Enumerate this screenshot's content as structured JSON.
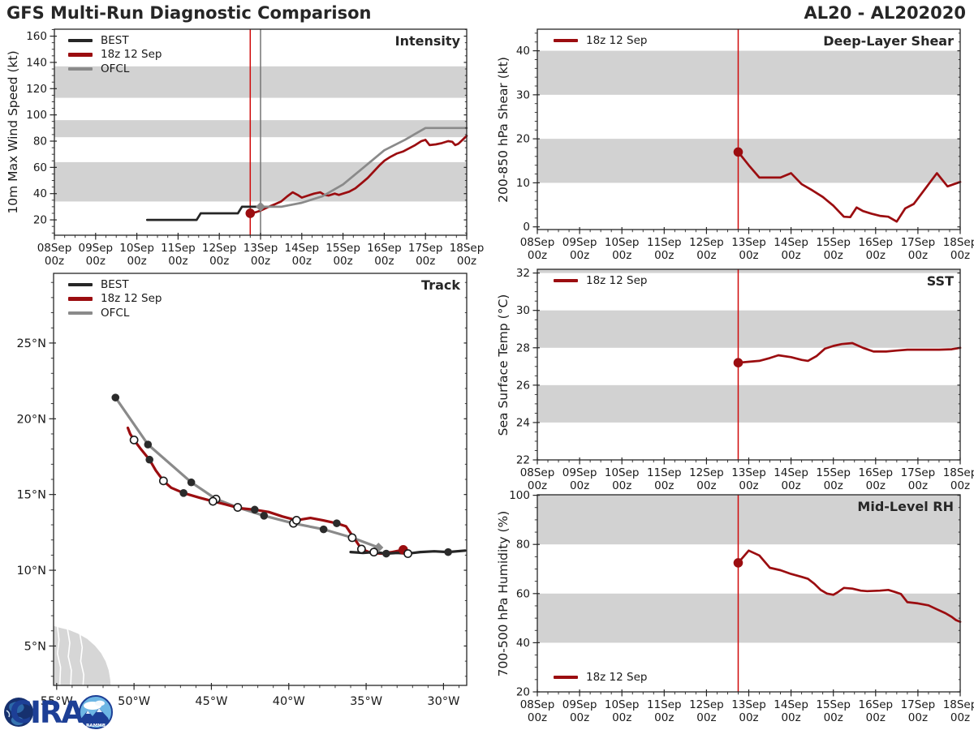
{
  "header": {
    "title_left": "GFS Multi-Run Diagnostic Comparison",
    "title_right": "AL20 - AL202020"
  },
  "colors": {
    "best": "#262626",
    "model": "#9b0d10",
    "ofcl": "#8a8a8a",
    "vline_red": "#cf0a0a",
    "vline_gray": "#757575",
    "band": "#d2d2d2",
    "land": "#d6d6d6",
    "spine": "#262626",
    "tick_text": "#1a1a1a"
  },
  "legend": {
    "best": "BEST",
    "model": "18z 12 Sep",
    "ofcl": "OFCL"
  },
  "logo": {
    "cira": "CIRA",
    "rammb": "RAMMB"
  },
  "time_axis": {
    "tick_line1": [
      "08Sep",
      "09Sep",
      "10Sep",
      "11Sep",
      "12Sep",
      "13Sep",
      "14Sep",
      "15Sep",
      "16Sep",
      "17Sep",
      "18Sep"
    ],
    "tick_line2": "00z",
    "xlim_days": [
      0,
      10
    ],
    "minor_step_days": 0.25
  },
  "chart_data": [
    {
      "id": "intensity",
      "type": "line",
      "title": "Intensity",
      "ylabel": "10m Max Wind Speed (kt)",
      "ylim": [
        8.3,
        165.3
      ],
      "yticks": [
        20,
        40,
        60,
        80,
        100,
        120,
        140,
        160
      ],
      "y_minor_step": 5,
      "bands": [
        [
          34,
          64
        ],
        [
          83,
          96
        ],
        [
          113,
          137
        ]
      ],
      "vlines": [
        {
          "t": 4.75,
          "color": "vline_red"
        },
        {
          "t": 5.0,
          "color": "vline_gray"
        }
      ],
      "show_xlabels": true,
      "series": [
        {
          "name": "BEST",
          "color": "best",
          "start_marker": null,
          "points": [
            [
              2.25,
              20
            ],
            [
              3.45,
              20
            ],
            [
              3.55,
              25
            ],
            [
              4.45,
              25
            ],
            [
              4.55,
              30
            ],
            [
              5.0,
              30
            ]
          ]
        },
        {
          "name": "18z 12 Sep",
          "color": "model",
          "start_marker": "r",
          "points": [
            [
              4.75,
              25
            ],
            [
              4.9,
              26
            ],
            [
              5.0,
              27
            ],
            [
              5.2,
              30
            ],
            [
              5.35,
              32
            ],
            [
              5.5,
              34
            ],
            [
              5.65,
              38
            ],
            [
              5.78,
              41
            ],
            [
              5.9,
              39
            ],
            [
              6.0,
              37
            ],
            [
              6.15,
              38.5
            ],
            [
              6.3,
              40
            ],
            [
              6.45,
              41
            ],
            [
              6.55,
              39
            ],
            [
              6.65,
              38.5
            ],
            [
              6.8,
              40
            ],
            [
              6.9,
              39
            ],
            [
              7.0,
              40
            ],
            [
              7.15,
              41.5
            ],
            [
              7.3,
              44
            ],
            [
              7.45,
              48
            ],
            [
              7.6,
              52
            ],
            [
              7.75,
              57
            ],
            [
              7.9,
              62
            ],
            [
              8.0,
              65
            ],
            [
              8.15,
              68
            ],
            [
              8.3,
              70.5
            ],
            [
              8.45,
              72
            ],
            [
              8.6,
              74.5
            ],
            [
              8.75,
              77
            ],
            [
              8.9,
              80
            ],
            [
              9.0,
              81
            ],
            [
              9.1,
              77
            ],
            [
              9.25,
              77.5
            ],
            [
              9.4,
              78.5
            ],
            [
              9.55,
              80
            ],
            [
              9.65,
              79.5
            ],
            [
              9.72,
              77
            ],
            [
              9.8,
              78
            ],
            [
              9.9,
              81
            ],
            [
              10.0,
              84
            ]
          ]
        },
        {
          "name": "OFCL",
          "color": "ofcl",
          "start_marker": "d",
          "points": [
            [
              5.0,
              30
            ],
            [
              5.5,
              30
            ],
            [
              6.0,
              33
            ],
            [
              6.5,
              38
            ],
            [
              7.0,
              47
            ],
            [
              7.5,
              60
            ],
            [
              8.0,
              73
            ],
            [
              8.5,
              81
            ],
            [
              8.75,
              85.5
            ],
            [
              9.0,
              90
            ],
            [
              10.0,
              90
            ]
          ]
        }
      ]
    },
    {
      "id": "track",
      "type": "track-map",
      "title": "Track",
      "lon_ticks": [
        55,
        50,
        45,
        40,
        35,
        30
      ],
      "lon_tick_labels": [
        "55°W",
        "50°W",
        "45°W",
        "40°W",
        "35°W",
        "30°W"
      ],
      "lat_ticks": [
        5,
        10,
        15,
        20,
        25
      ],
      "lat_tick_labels": [
        "5°N",
        "10°N",
        "15°N",
        "20°N",
        "25°N"
      ],
      "lonlim": [
        55.2,
        28.5
      ],
      "latlim": [
        2.4,
        29.6
      ],
      "series": [
        {
          "name": "OFCL",
          "color": "ofcl",
          "points": [
            [
              34.2,
              11.5,
              "d"
            ],
            [
              35.9,
              12.15,
              "o"
            ],
            [
              37.75,
              12.7,
              "f"
            ],
            [
              39.7,
              13.1,
              "o"
            ],
            [
              41.6,
              13.6,
              "f"
            ],
            [
              43.3,
              14.15,
              "o"
            ],
            [
              44.7,
              14.7,
              "o"
            ],
            [
              46.3,
              15.8,
              "f"
            ],
            [
              49.1,
              18.3,
              "f"
            ],
            [
              51.2,
              21.4,
              "f"
            ]
          ]
        },
        {
          "name": "18z 12 Sep",
          "color": "model",
          "points": [
            [
              32.6,
              11.35,
              "r"
            ],
            [
              33.3,
              11.2,
              null
            ],
            [
              34.0,
              11.1,
              null
            ],
            [
              34.7,
              11.15,
              null
            ],
            [
              35.3,
              11.4,
              "o"
            ],
            [
              35.7,
              12.0,
              null
            ],
            [
              36.3,
              12.9,
              null
            ],
            [
              36.9,
              13.1,
              "f"
            ],
            [
              37.8,
              13.3,
              null
            ],
            [
              38.6,
              13.45,
              null
            ],
            [
              39.5,
              13.3,
              "o"
            ],
            [
              40.4,
              13.55,
              null
            ],
            [
              41.3,
              13.85,
              null
            ],
            [
              42.2,
              14.0,
              "f"
            ],
            [
              43.2,
              14.1,
              null
            ],
            [
              44.1,
              14.35,
              null
            ],
            [
              44.9,
              14.55,
              "o"
            ],
            [
              45.8,
              14.8,
              null
            ],
            [
              46.8,
              15.1,
              "f"
            ],
            [
              47.6,
              15.45,
              null
            ],
            [
              48.1,
              15.9,
              "o"
            ],
            [
              48.6,
              16.6,
              null
            ],
            [
              49.0,
              17.3,
              "f"
            ],
            [
              49.6,
              18.05,
              null
            ],
            [
              50.0,
              18.6,
              "o"
            ],
            [
              50.25,
              19.0,
              null
            ],
            [
              50.4,
              19.4,
              null
            ]
          ]
        },
        {
          "name": "BEST",
          "color": "best",
          "points": [
            [
              36.0,
              11.2,
              null
            ],
            [
              35.2,
              11.15,
              null
            ],
            [
              34.5,
              11.2,
              "o"
            ],
            [
              33.7,
              11.1,
              "f"
            ],
            [
              33.0,
              11.15,
              null
            ],
            [
              32.3,
              11.1,
              "o"
            ],
            [
              31.5,
              11.2,
              null
            ],
            [
              30.6,
              11.25,
              null
            ],
            [
              29.7,
              11.2,
              "f"
            ],
            [
              28.6,
              11.3,
              null
            ]
          ]
        }
      ],
      "land_outline": [
        [
          55.3,
          6.4
        ],
        [
          54.8,
          6.25
        ],
        [
          54.2,
          6.1
        ],
        [
          53.6,
          5.85
        ],
        [
          53.0,
          5.5
        ],
        [
          52.5,
          5.05
        ],
        [
          52.1,
          4.55
        ],
        [
          51.8,
          4.0
        ],
        [
          51.6,
          3.4
        ],
        [
          51.5,
          2.8
        ],
        [
          51.45,
          2.2
        ],
        [
          55.3,
          2.2
        ]
      ],
      "rivers": [
        [
          [
            54.95,
            6.3
          ],
          [
            54.85,
            5.4
          ],
          [
            54.95,
            4.5
          ],
          [
            54.75,
            3.6
          ],
          [
            54.8,
            2.3
          ]
        ],
        [
          [
            54.3,
            6.1
          ],
          [
            54.15,
            5.2
          ],
          [
            54.25,
            4.3
          ],
          [
            54.05,
            3.4
          ],
          [
            54.1,
            2.3
          ]
        ],
        [
          [
            53.5,
            5.8
          ],
          [
            53.35,
            4.9
          ],
          [
            53.45,
            4.0
          ],
          [
            53.25,
            3.1
          ],
          [
            53.3,
            2.3
          ]
        ]
      ]
    },
    {
      "id": "shear",
      "type": "line",
      "title": "Deep-Layer Shear",
      "ylabel": "200-850 hPa Shear (kt)",
      "ylim": [
        -0.61,
        44.9
      ],
      "yticks": [
        0,
        10,
        20,
        30,
        40
      ],
      "y_minor_step": 2,
      "bands": [
        [
          10,
          20
        ],
        [
          30,
          40
        ]
      ],
      "vlines": [
        {
          "t": 4.75,
          "color": "vline_red"
        }
      ],
      "show_xlabels": true,
      "series": [
        {
          "name": "18z 12 Sep",
          "color": "model",
          "start_marker": "r",
          "points": [
            [
              4.75,
              17
            ],
            [
              5.0,
              14
            ],
            [
              5.25,
              11.2
            ],
            [
              5.5,
              11.2
            ],
            [
              5.75,
              11.2
            ],
            [
              6.0,
              12.2
            ],
            [
              6.25,
              9.7
            ],
            [
              6.5,
              8.3
            ],
            [
              6.75,
              6.8
            ],
            [
              7.0,
              4.8
            ],
            [
              7.25,
              2.3
            ],
            [
              7.4,
              2.2
            ],
            [
              7.55,
              4.4
            ],
            [
              7.7,
              3.6
            ],
            [
              7.9,
              3.0
            ],
            [
              8.1,
              2.5
            ],
            [
              8.3,
              2.3
            ],
            [
              8.5,
              1.2
            ],
            [
              8.7,
              4.2
            ],
            [
              8.9,
              5.2
            ],
            [
              9.2,
              9.0
            ],
            [
              9.45,
              12.2
            ],
            [
              9.7,
              9.2
            ],
            [
              10.0,
              10.2
            ]
          ]
        }
      ]
    },
    {
      "id": "sst",
      "type": "line",
      "title": "SST",
      "ylabel": "Sea Surface Temp (°C)",
      "ylim": [
        22,
        32.2
      ],
      "yticks": [
        22,
        24,
        26,
        28,
        30,
        32
      ],
      "y_minor_step": 0.5,
      "bands": [
        [
          24,
          26
        ],
        [
          28,
          30
        ],
        [
          32,
          32.2
        ]
      ],
      "vlines": [
        {
          "t": 4.75,
          "color": "vline_red"
        }
      ],
      "show_xlabels": true,
      "series": [
        {
          "name": "18z 12 Sep",
          "color": "model",
          "start_marker": "r",
          "points": [
            [
              4.75,
              27.2
            ],
            [
              5.0,
              27.25
            ],
            [
              5.25,
              27.3
            ],
            [
              5.5,
              27.45
            ],
            [
              5.7,
              27.6
            ],
            [
              6.0,
              27.5
            ],
            [
              6.25,
              27.35
            ],
            [
              6.4,
              27.3
            ],
            [
              6.6,
              27.55
            ],
            [
              6.8,
              27.95
            ],
            [
              7.0,
              28.1
            ],
            [
              7.2,
              28.2
            ],
            [
              7.45,
              28.25
            ],
            [
              7.7,
              28.0
            ],
            [
              7.95,
              27.8
            ],
            [
              8.25,
              27.8
            ],
            [
              8.5,
              27.85
            ],
            [
              8.75,
              27.9
            ],
            [
              9.0,
              27.9
            ],
            [
              9.5,
              27.9
            ],
            [
              9.8,
              27.92
            ],
            [
              10.0,
              28.0
            ]
          ]
        }
      ]
    },
    {
      "id": "rh",
      "type": "line",
      "title": "Mid-Level RH",
      "ylabel": "700-500 hPa Humidity (%)",
      "ylim": [
        20,
        100.2
      ],
      "yticks": [
        20,
        40,
        60,
        80,
        100
      ],
      "y_minor_step": 5,
      "bands": [
        [
          40,
          60
        ],
        [
          80,
          100.2
        ]
      ],
      "vlines": [
        {
          "t": 4.75,
          "color": "vline_red"
        }
      ],
      "show_xlabels": true,
      "series": [
        {
          "name": "18z 12 Sep",
          "color": "model",
          "start_marker": "r",
          "points": [
            [
              4.75,
              72.5
            ],
            [
              5.0,
              77.5
            ],
            [
              5.25,
              75.5
            ],
            [
              5.5,
              70.5
            ],
            [
              5.75,
              69.5
            ],
            [
              6.0,
              68
            ],
            [
              6.25,
              66.8
            ],
            [
              6.4,
              66
            ],
            [
              6.55,
              64
            ],
            [
              6.7,
              61.5
            ],
            [
              6.85,
              60
            ],
            [
              7.0,
              59.5
            ],
            [
              7.1,
              60.5
            ],
            [
              7.25,
              62.3
            ],
            [
              7.45,
              62
            ],
            [
              7.65,
              61.2
            ],
            [
              7.8,
              61
            ],
            [
              8.1,
              61.2
            ],
            [
              8.3,
              61.5
            ],
            [
              8.45,
              60.7
            ],
            [
              8.6,
              59.8
            ],
            [
              8.75,
              56.5
            ],
            [
              9.0,
              56
            ],
            [
              9.25,
              55.2
            ],
            [
              9.45,
              53.6
            ],
            [
              9.65,
              52
            ],
            [
              9.8,
              50.5
            ],
            [
              9.9,
              49.2
            ],
            [
              10.0,
              48.5
            ]
          ]
        }
      ]
    }
  ]
}
